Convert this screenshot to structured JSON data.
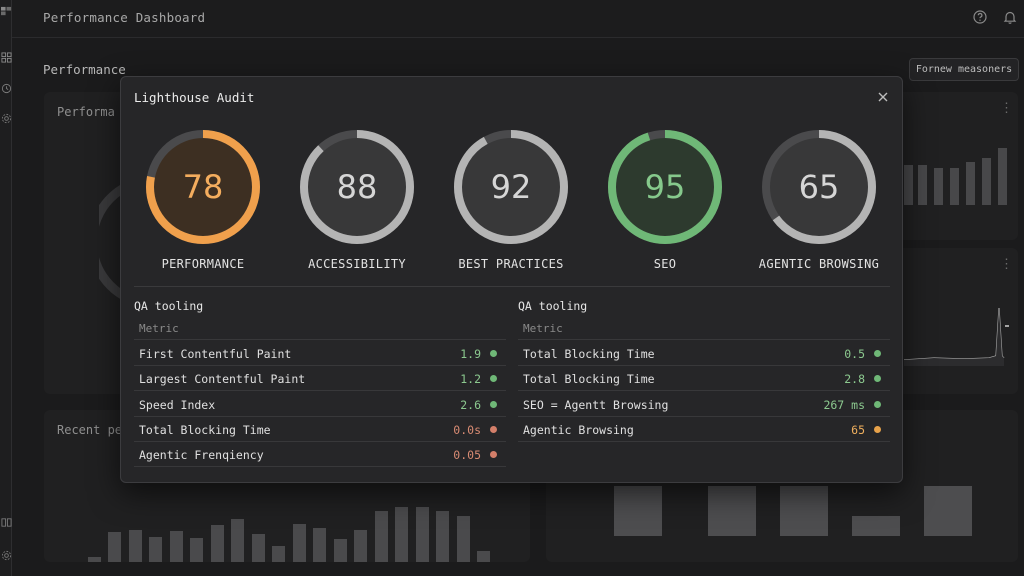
{
  "app": {
    "title": "Performance Dashboard",
    "section_title": "Performance",
    "pill_button": "Fornew measoners",
    "card_titles": {
      "performance": "Performa",
      "recent": "Recent pe"
    }
  },
  "modal": {
    "title": "Lighthouse Audit",
    "gauges": [
      {
        "label": "PERFORMANCE",
        "score": 78,
        "color": "#f0a04c",
        "text_color": "#f4ad5e",
        "fill": "#3d2f22"
      },
      {
        "label": "ACCESSIBILITY",
        "score": 88,
        "color": "#b4b4b4",
        "text_color": "#d6d6d6",
        "fill": "#383839"
      },
      {
        "label": "BEST PRACTICES",
        "score": 92,
        "color": "#b4b4b4",
        "text_color": "#d6d6d6",
        "fill": "#383839"
      },
      {
        "label": "SEO",
        "score": 95,
        "color": "#6fb877",
        "text_color": "#86c98c",
        "fill": "#2d3a2e"
      },
      {
        "label": "AGENTIC BROWSING",
        "score": 65,
        "color": "#b4b4b4",
        "text_color": "#d6d6d6",
        "fill": "#383839"
      }
    ],
    "left_panel": {
      "title": "QA tooling",
      "header": "Metric",
      "rows": [
        {
          "name": "First Contentful Paint",
          "value": "1.9",
          "status": "good"
        },
        {
          "name": "Largest Contentful Paint",
          "value": "1.2",
          "status": "good"
        },
        {
          "name": "Speed Index",
          "value": "2.6",
          "status": "good"
        },
        {
          "name": "Total Blocking Time",
          "value": "0.0s",
          "status": "poor"
        },
        {
          "name": "Agentic Frenqiency",
          "value": "0.05",
          "status": "poor"
        }
      ]
    },
    "right_panel": {
      "title": "QA tooling",
      "header": "Metric",
      "rows": [
        {
          "name": "Total Blocking Time",
          "value": "0.5",
          "status": "good"
        },
        {
          "name": "Total Blocking Time",
          "value": "2.8",
          "status": "good"
        },
        {
          "name": "SEO = Agentt Browsing",
          "value": "267 ms",
          "status": "good"
        },
        {
          "name": "Agentic Browsing",
          "value": "65",
          "status": "average"
        }
      ]
    }
  },
  "status_colors": {
    "good": "#6fb877",
    "poor": "#d47f6a",
    "average": "#e7a24a"
  },
  "value_colors": {
    "good": "#8cc98f",
    "poor": "#d88b73",
    "average": "#f0b05e"
  },
  "icons": {
    "rail": [
      "logo-icon",
      "grid-icon",
      "clock-icon",
      "settings-icon",
      "book-icon",
      "gear-icon"
    ],
    "topbar": [
      "help-icon",
      "bell-icon"
    ],
    "modal": "close-icon"
  }
}
